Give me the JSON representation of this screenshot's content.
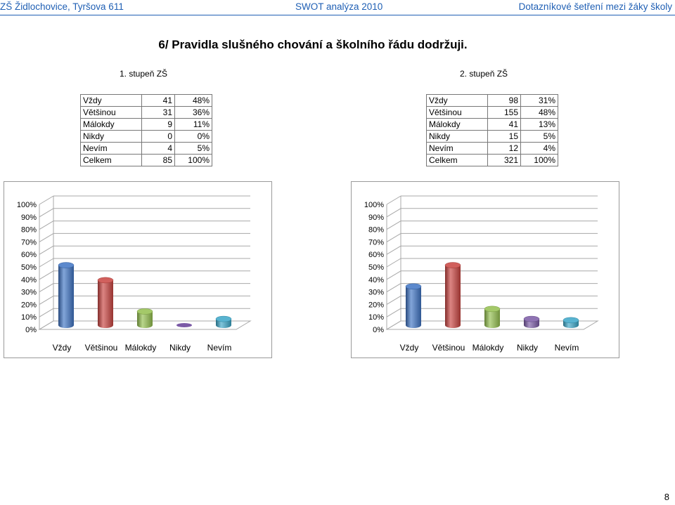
{
  "header": {
    "left": "ZŠ Židlochovice, Tyršova 611",
    "center": "SWOT analýza 2010",
    "right": "Dotazníkové šetření mezi žáky školy"
  },
  "title": "6/ Pravidla slušného chování a školního řádu dodržuji.",
  "page_number": "8",
  "groups": [
    {
      "label": "1. stupeň ZŠ",
      "rows": [
        {
          "label": "Vždy",
          "count": "41",
          "pct": "48%"
        },
        {
          "label": "Většinou",
          "count": "31",
          "pct": "36%"
        },
        {
          "label": "Málokdy",
          "count": "9",
          "pct": "11%"
        },
        {
          "label": "Nikdy",
          "count": "0",
          "pct": "0%"
        },
        {
          "label": "Nevím",
          "count": "4",
          "pct": "5%"
        },
        {
          "label": "Celkem",
          "count": "85",
          "pct": "100%"
        }
      ]
    },
    {
      "label": "2. stupeň ZŠ",
      "rows": [
        {
          "label": "Vždy",
          "count": "98",
          "pct": "31%"
        },
        {
          "label": "Většinou",
          "count": "155",
          "pct": "48%"
        },
        {
          "label": "Málokdy",
          "count": "41",
          "pct": "13%"
        },
        {
          "label": "Nikdy",
          "count": "15",
          "pct": "5%"
        },
        {
          "label": "Nevím",
          "count": "12",
          "pct": "4%"
        },
        {
          "label": "Celkem",
          "count": "321",
          "pct": "100%"
        }
      ]
    }
  ],
  "chart_data": [
    {
      "type": "bar",
      "categories": [
        "Vždy",
        "Většinou",
        "Málokdy",
        "Nikdy",
        "Nevím"
      ],
      "values": [
        48,
        36,
        11,
        0,
        5
      ],
      "ylim": [
        0,
        100
      ],
      "yticks": [
        "0%",
        "10%",
        "20%",
        "30%",
        "40%",
        "50%",
        "60%",
        "70%",
        "80%",
        "90%",
        "100%"
      ],
      "colors": [
        "#3f74c4",
        "#c94440",
        "#94c04e",
        "#7b5aa6",
        "#3ba6c8"
      ]
    },
    {
      "type": "bar",
      "categories": [
        "Vždy",
        "Většinou",
        "Málokdy",
        "Nikdy",
        "Nevím"
      ],
      "values": [
        31,
        48,
        13,
        5,
        4
      ],
      "ylim": [
        0,
        100
      ],
      "yticks": [
        "0%",
        "10%",
        "20%",
        "30%",
        "40%",
        "50%",
        "60%",
        "70%",
        "80%",
        "90%",
        "100%"
      ],
      "colors": [
        "#3f74c4",
        "#c94440",
        "#94c04e",
        "#7b5aa6",
        "#3ba6c8"
      ]
    }
  ]
}
